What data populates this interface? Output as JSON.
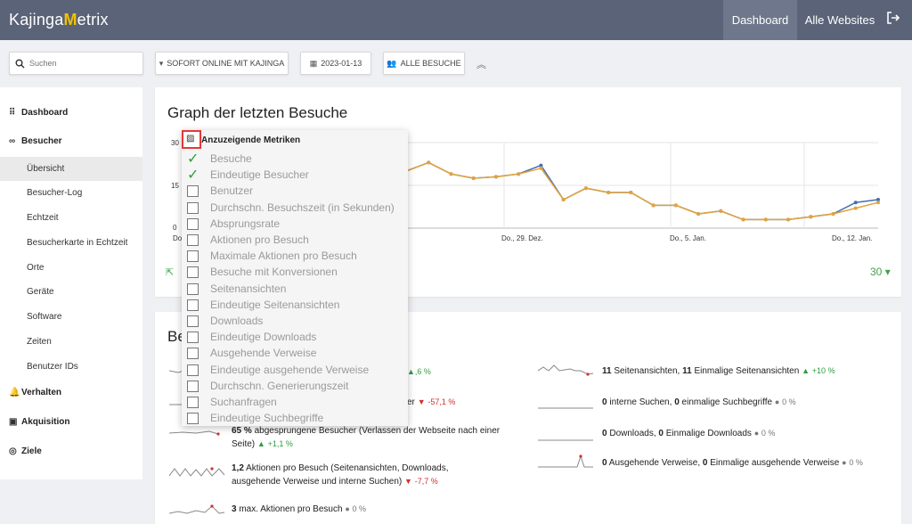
{
  "app": {
    "logo_prefix": "Kajinga",
    "logo_m": "M",
    "logo_suffix": "etrix"
  },
  "nav": {
    "dashboard": "Dashboard",
    "all_websites": "Alle Websites"
  },
  "toolbar": {
    "search_placeholder": "Suchen",
    "site_label": "SOFORT ONLINE MIT KAJINGA",
    "date_label": "2023-01-13",
    "segment_label": "ALLE BESUCHE"
  },
  "sidebar": {
    "dashboard": "Dashboard",
    "visitors": "Besucher",
    "visitor_items": [
      "Übersicht",
      "Besucher-Log",
      "Echtzeit",
      "Besucherkarte in Echtzeit",
      "Orte",
      "Geräte",
      "Software",
      "Zeiten",
      "Benutzer IDs"
    ],
    "behavior": "Verhalten",
    "acquisition": "Akquisition",
    "goals": "Ziele"
  },
  "graph_card": {
    "title": "Graph der letzten Besuche",
    "period": "30"
  },
  "chart_data": {
    "type": "line",
    "yticks": [
      "30",
      "15",
      "0"
    ],
    "xtick_labels": [
      "Do",
      "Do., 29. Dez.",
      "Do., 5. Jan.",
      "Do., 12. Jan."
    ],
    "ylim": [
      0,
      30
    ],
    "series": [
      {
        "color": "#3f6fb5",
        "values": [
          20,
          23,
          19,
          17.5,
          18,
          19,
          22,
          10,
          14,
          12.5,
          12.5,
          8,
          8,
          5,
          6,
          3,
          3,
          3,
          4,
          5,
          9,
          10
        ]
      },
      {
        "color": "#e3a33a",
        "values": [
          20,
          23,
          19,
          17.5,
          18,
          19,
          21,
          10,
          14,
          12.5,
          12.5,
          8,
          8,
          5,
          6,
          3,
          3,
          3,
          4,
          5,
          7,
          9
        ]
      }
    ]
  },
  "metrics_dropdown": {
    "title": "Anzuzeigende Metriken",
    "items": [
      {
        "label": "Besuche",
        "checked": true
      },
      {
        "label": "Eindeutige Besucher",
        "checked": true
      },
      {
        "label": "Benutzer",
        "checked": false
      },
      {
        "label": "Durchschn. Besuchszeit (in Sekunden)",
        "checked": false
      },
      {
        "label": "Absprungsrate",
        "checked": false
      },
      {
        "label": "Aktionen pro Besuch",
        "checked": false
      },
      {
        "label": "Maximale Aktionen pro Besuch",
        "checked": false
      },
      {
        "label": "Besuche mit Konversionen",
        "checked": false
      },
      {
        "label": "Seitenansichten",
        "checked": false
      },
      {
        "label": "Eindeutige Seitenansichten",
        "checked": false
      },
      {
        "label": "Downloads",
        "checked": false
      },
      {
        "label": "Eindeutige Downloads",
        "checked": false
      },
      {
        "label": "Ausgehende Verweise",
        "checked": false
      },
      {
        "label": "Eindeutige ausgehende Verweise",
        "checked": false
      },
      {
        "label": "Durchschn. Generierungszeit",
        "checked": false
      },
      {
        "label": "Suchanfragen",
        "checked": false
      },
      {
        "label": "Eindeutige Suchbegriffe",
        "checked": false
      }
    ]
  },
  "overview_card": {
    "title_visible": "Be",
    "left": {
      "m1_change": ",6 %",
      "m2_tail": "er",
      "m2_change": "-57,1 %",
      "m3_value": "65 %",
      "m3_text": "abgesprungene Besucher (Verlassen der Webseite nach einer Seite)",
      "m3_change": "+1,1 %",
      "m4_value": "1,2",
      "m4_text": "Aktionen pro Besuch (Seitenansichten, Downloads, ausgehende Verweise und interne Suchen)",
      "m4_change": "-7,7 %",
      "m5_value": "3",
      "m5_text": "max. Aktionen pro Besuch",
      "m5_change": "0 %"
    },
    "right": {
      "r1_v1": "11",
      "r1_t1": "Seitenansichten,",
      "r1_v2": "11",
      "r1_t2": "Einmalige Seitenansichten",
      "r1_change": "+10 %",
      "r2_v1": "0",
      "r2_t1": "interne Suchen,",
      "r2_v2": "0",
      "r2_t2": "einmalige Suchbegriffe",
      "r2_change": "0 %",
      "r3_v1": "0",
      "r3_t1": "Downloads,",
      "r3_v2": "0",
      "r3_t2": "Einmalige Downloads",
      "r3_change": "0 %",
      "r4_v1": "0",
      "r4_t1": "Ausgehende Verweise,",
      "r4_v2": "0",
      "r4_t2": "Einmalige ausgehende Verweise",
      "r4_change": "0 %"
    }
  }
}
